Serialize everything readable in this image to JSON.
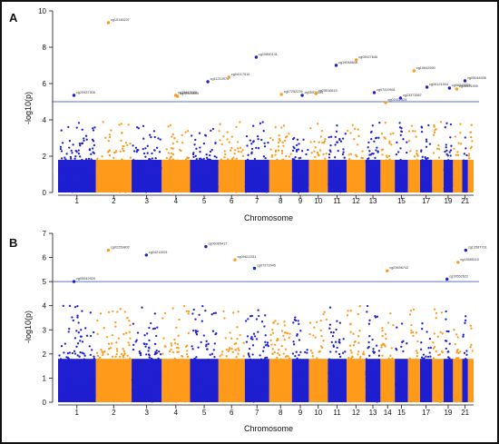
{
  "colors": {
    "frame": "#111111",
    "series_blue": "#1f1fd1",
    "series_orange": "#ff9a1a",
    "threshold_line": "#5b6fd6",
    "text": "#111111",
    "annotation": "#333333"
  },
  "chart_data": [
    {
      "type": "scatter",
      "panel_label": "A",
      "subtype": "manhattan",
      "xlabel": "Chromosome",
      "ylabel": "-log10(p)",
      "ylim": [
        0,
        10
      ],
      "yticks": [
        0,
        2,
        4,
        6,
        8,
        10
      ],
      "xtick_labels": [
        "1",
        "2",
        "3",
        "4",
        "5",
        "6",
        "7",
        "8",
        "9",
        "10",
        "11",
        "12",
        "13",
        "15",
        "17",
        "19",
        "21"
      ],
      "chromosomes": [
        "1",
        "2",
        "3",
        "4",
        "5",
        "6",
        "7",
        "8",
        "9",
        "10",
        "11",
        "12",
        "13",
        "14",
        "15",
        "16",
        "17",
        "18",
        "19",
        "20",
        "21",
        "22"
      ],
      "threshold": 5,
      "grid": false,
      "legend": "none",
      "top_hits": [
        {
          "label": "cg15146237",
          "chr": "2",
          "y": 9.35
        },
        {
          "label": "cg20437306",
          "chr": "1",
          "y": 5.35
        },
        {
          "label": "cg15613388",
          "chr": "4",
          "y": 5.35
        },
        {
          "label": "cg08526605",
          "chr": "4",
          "y": 5.3
        },
        {
          "label": "cg11210976",
          "chr": "5",
          "y": 6.1
        },
        {
          "label": "cg04117510",
          "chr": "6",
          "y": 6.35
        },
        {
          "label": "cg10890131",
          "chr": "7",
          "y": 7.45
        },
        {
          "label": "cg17252239",
          "chr": "8",
          "y": 5.4
        },
        {
          "label": "cg05034491",
          "chr": "9",
          "y": 5.35
        },
        {
          "label": "cg25516819",
          "chr": "10",
          "y": 5.45
        },
        {
          "label": "cg19048646",
          "chr": "11",
          "y": 7.0
        },
        {
          "label": "cg05927646",
          "chr": "12",
          "y": 7.3
        },
        {
          "label": "cg07419941",
          "chr": "13",
          "y": 5.5
        },
        {
          "label": "cg02412524",
          "chr": "14",
          "y": 4.95
        },
        {
          "label": "cg23373567",
          "chr": "15",
          "y": 5.2
        },
        {
          "label": "cg10642590",
          "chr": "16",
          "y": 6.7
        },
        {
          "label": "cg06121504",
          "chr": "17",
          "y": 5.8
        },
        {
          "label": "cg06047876",
          "chr": "19",
          "y": 5.75
        },
        {
          "label": "cg08501909",
          "chr": "20",
          "y": 5.7
        },
        {
          "label": "cg05048436",
          "chr": "21",
          "y": 6.15
        }
      ]
    },
    {
      "type": "scatter",
      "panel_label": "B",
      "subtype": "manhattan",
      "xlabel": "Chromosome",
      "ylabel": "-log10(p)",
      "ylim": [
        0,
        7
      ],
      "yticks": [
        0,
        1,
        2,
        3,
        4,
        5,
        6,
        7
      ],
      "xtick_labels": [
        "1",
        "2",
        "3",
        "4",
        "5",
        "6",
        "7",
        "8",
        "9",
        "10",
        "11",
        "12",
        "13",
        "14",
        "15",
        "17",
        "19",
        "21"
      ],
      "chromosomes": [
        "1",
        "2",
        "3",
        "4",
        "5",
        "6",
        "7",
        "8",
        "9",
        "10",
        "11",
        "12",
        "13",
        "14",
        "15",
        "16",
        "17",
        "18",
        "19",
        "20",
        "21",
        "22"
      ],
      "threshold": 5,
      "grid": false,
      "legend": "none",
      "top_hits": [
        {
          "label": "cg02259802",
          "chr": "2",
          "y": 6.3
        },
        {
          "label": "cg05942929",
          "chr": "1",
          "y": 5.0
        },
        {
          "label": "cg04211003",
          "chr": "3",
          "y": 6.1
        },
        {
          "label": "cg06065417",
          "chr": "5",
          "y": 6.45
        },
        {
          "label": "cg09612251",
          "chr": "6",
          "y": 5.9
        },
        {
          "label": "cg07272045",
          "chr": "7",
          "y": 5.55
        },
        {
          "label": "cg23696742",
          "chr": "14",
          "y": 5.45
        },
        {
          "label": "cg13585110",
          "chr": "20",
          "y": 5.8
        },
        {
          "label": "cg13587761",
          "chr": "21",
          "y": 6.3
        },
        {
          "label": "cg19552622",
          "chr": "19",
          "y": 5.1
        }
      ]
    }
  ]
}
